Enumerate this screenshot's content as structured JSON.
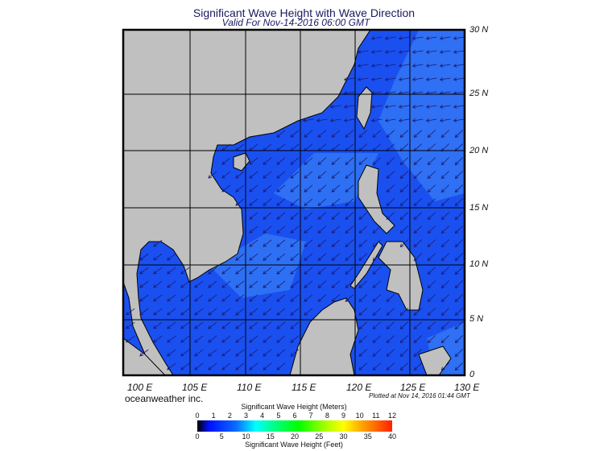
{
  "header": {
    "title": "Significant Wave Height with Wave Direction",
    "subtitle": "Valid For Nov-14-2016 06:00 GMT"
  },
  "map": {
    "lon_labels": [
      "100 E",
      "105 E",
      "110 E",
      "115 E",
      "120 E",
      "125 E",
      "130 E"
    ],
    "lat_labels": [
      "30 N",
      "25 N",
      "20 N",
      "15 N",
      "10 N",
      "5 N",
      "0"
    ],
    "colors": {
      "land": "#c0c0c0",
      "ocean": "#1a50f0",
      "ocean_light": "#3478f5",
      "coast": "#000000",
      "arrow": "#1a1a70"
    }
  },
  "footer": {
    "credit": "oceanweather inc.",
    "plotted": "Plotted at Nov 14, 2016 01:44 GMT"
  },
  "legend": {
    "meters_title": "Significant Wave Height (Meters)",
    "meters_ticks": [
      "0",
      "1",
      "2",
      "3",
      "4",
      "5",
      "6",
      "7",
      "8",
      "9",
      "10",
      "11",
      "12"
    ],
    "feet_ticks": [
      "0",
      "5",
      "10",
      "15",
      "20",
      "25",
      "30",
      "35",
      "40"
    ],
    "feet_title": "Significant Wave Height (Feet)"
  }
}
